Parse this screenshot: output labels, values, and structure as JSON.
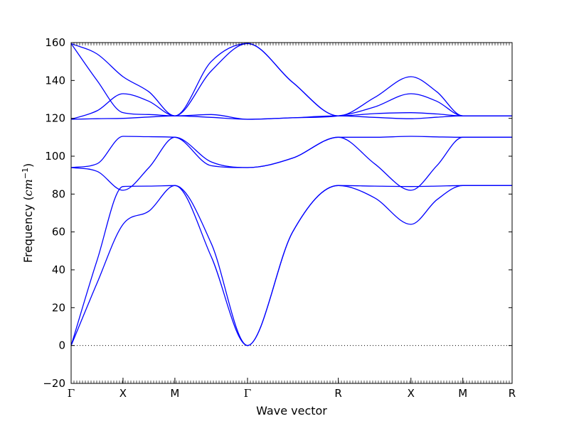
{
  "chart_data": {
    "type": "line",
    "title": "",
    "xlabel": "Wave vector",
    "ylabel_prefix": "Frequency (",
    "ylabel_unit_base": "cm",
    "ylabel_unit_exp": "−1",
    "ylabel_suffix": ")",
    "ylim": [
      -20,
      160
    ],
    "yticks": [
      -20,
      0,
      20,
      40,
      60,
      80,
      100,
      120,
      140,
      160
    ],
    "ytick_labels": [
      "−20",
      "0",
      "20",
      "40",
      "60",
      "80",
      "100",
      "120",
      "140",
      "160"
    ],
    "xlim": [
      0,
      8.5
    ],
    "kpoints": [
      {
        "pos": 0,
        "label": "Γ"
      },
      {
        "pos": 1,
        "label": "X"
      },
      {
        "pos": 2,
        "label": "M"
      },
      {
        "pos": 3.4,
        "label": "Γ"
      },
      {
        "pos": 5.15,
        "label": "R"
      },
      {
        "pos": 6.55,
        "label": "X"
      },
      {
        "pos": 7.55,
        "label": "M"
      },
      {
        "pos": 8.5,
        "label": "R"
      }
    ],
    "zero_line": true,
    "line_color": "#0000ff",
    "branches": [
      {
        "x": [
          0,
          0.5,
          1,
          1.5,
          2,
          2.7,
          3.4,
          4.27,
          5.15,
          5.85,
          6.55,
          7.05,
          7.55,
          8.0,
          8.5
        ],
        "y": [
          0,
          33,
          64,
          71,
          84.5,
          54,
          0,
          60,
          84.5,
          78,
          64,
          77,
          84.5,
          84.5,
          84.5
        ]
      },
      {
        "x": [
          0,
          0.5,
          1,
          1.5,
          2,
          2.7,
          3.4,
          4.27,
          5.15,
          5.85,
          6.55,
          7.05,
          7.55,
          8.0,
          8.5
        ],
        "y": [
          0,
          45,
          84,
          84.2,
          84.5,
          47,
          0,
          60,
          84.5,
          84.2,
          84,
          84.2,
          84.5,
          84.5,
          84.5
        ]
      },
      {
        "x": [
          0,
          0.5,
          1,
          1.5,
          2,
          2.7,
          3.4,
          4.27,
          5.15,
          5.85,
          6.55,
          7.05,
          7.55,
          8.0,
          8.5
        ],
        "y": [
          94,
          92,
          82,
          94,
          110,
          97,
          94,
          99,
          110,
          96,
          82,
          95,
          110,
          110,
          110
        ]
      },
      {
        "x": [
          0,
          0.5,
          1,
          1.5,
          2,
          2.7,
          3.4,
          4.27,
          5.15,
          5.85,
          6.55,
          7.05,
          7.55,
          8.0,
          8.5
        ],
        "y": [
          94,
          96,
          110.5,
          110.3,
          110,
          95,
          94,
          99,
          110,
          110,
          110.5,
          110.2,
          110,
          110,
          110
        ]
      },
      {
        "x": [
          0,
          0.5,
          1,
          1.5,
          2,
          2.7,
          3.4,
          4.27,
          5.15,
          5.85,
          6.55,
          7.05,
          7.55,
          8.0,
          8.5
        ],
        "y": [
          119.5,
          119.8,
          120,
          120.7,
          121.3,
          120.5,
          119.5,
          120.3,
          121.3,
          120.5,
          119.8,
          120.6,
          121.3,
          121.3,
          121.3
        ]
      },
      {
        "x": [
          0,
          0.5,
          1,
          1.5,
          2,
          2.7,
          3.4,
          4.27,
          5.15,
          5.85,
          6.55,
          7.05,
          7.55,
          8.0,
          8.5
        ],
        "y": [
          119.5,
          124,
          133,
          129,
          121.3,
          122,
          119.5,
          120.3,
          121.3,
          126,
          133,
          129,
          121.3,
          121.3,
          121.3
        ]
      },
      {
        "x": [
          0,
          0.5,
          1,
          1.5,
          2,
          2.7,
          3.4,
          4.27,
          5.15,
          5.85,
          6.55,
          7.05,
          7.55,
          8.0,
          8.5
        ],
        "y": [
          159.5,
          140,
          123,
          122,
          121.3,
          150,
          159.5,
          139,
          121.3,
          122.5,
          123,
          122.3,
          121.3,
          121.3,
          121.3
        ]
      },
      {
        "x": [
          0,
          0.5,
          1,
          1.5,
          2,
          2.7,
          3.4,
          4.27,
          5.15,
          5.85,
          6.55,
          7.05,
          7.55,
          8.0,
          8.5
        ],
        "y": [
          159.5,
          154,
          142,
          134,
          121.3,
          145,
          159.5,
          139,
          121.3,
          131,
          142,
          134,
          121.3,
          121.3,
          121.3
        ]
      }
    ]
  }
}
